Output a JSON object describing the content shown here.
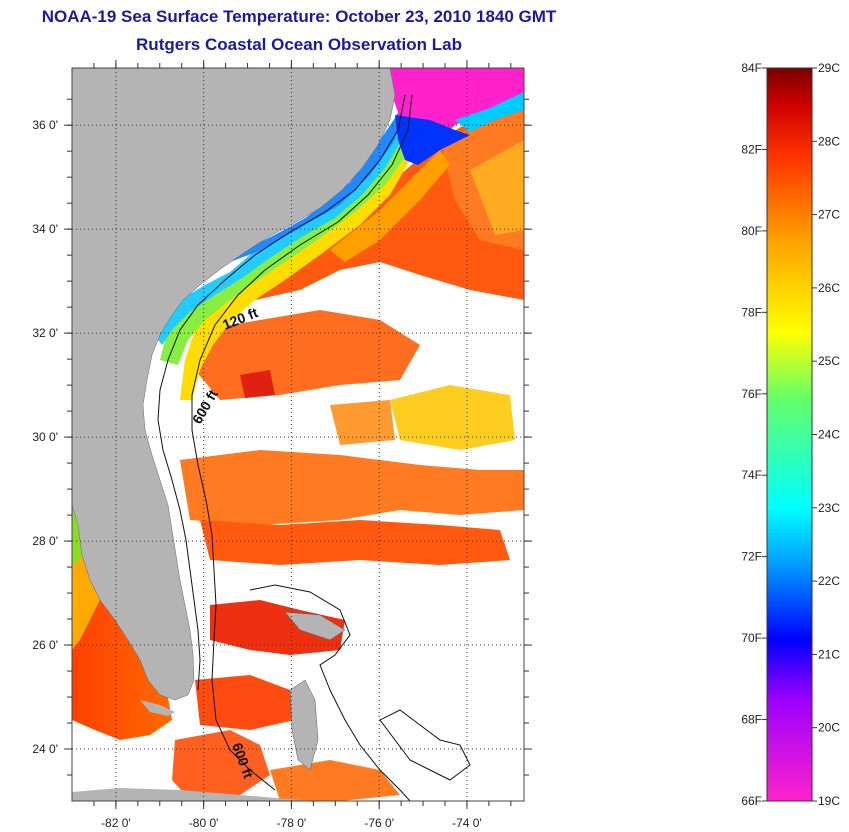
{
  "title": "NOAA-19 Sea Surface Temperature:  October 23, 2010 1840 GMT",
  "subtitle": "Rutgers Coastal Ocean Observation Lab",
  "map": {
    "lon_range": [
      -83,
      -72.7
    ],
    "lat_range": [
      23,
      37.1
    ],
    "lat_ticks": [
      {
        "value": 36,
        "label": "36 0'"
      },
      {
        "value": 34,
        "label": "34 0'"
      },
      {
        "value": 32,
        "label": "32 0'"
      },
      {
        "value": 30,
        "label": "30 0'"
      },
      {
        "value": 28,
        "label": "28 0'"
      },
      {
        "value": 26,
        "label": "26 0'"
      },
      {
        "value": 24,
        "label": "24 0'"
      }
    ],
    "lon_ticks": [
      {
        "value": -82,
        "label": "-82 0'"
      },
      {
        "value": -80,
        "label": "-80 0'"
      },
      {
        "value": -78,
        "label": "-78 0'"
      },
      {
        "value": -76,
        "label": "-76 0'"
      },
      {
        "value": -74,
        "label": "-74 0'"
      }
    ],
    "contour_labels": [
      "120 ft",
      "600 ft",
      "600 ft"
    ],
    "land_color": "#b4b4b4"
  },
  "colorbar": {
    "fahrenheit_labels": [
      "84F",
      "82F",
      "80F",
      "78F",
      "76F",
      "74F",
      "72F",
      "70F",
      "68F",
      "66F"
    ],
    "celsius_labels": [
      "29C",
      "28C",
      "27C",
      "26C",
      "25C",
      "24C",
      "23C",
      "22C",
      "21C",
      "20C",
      "19C"
    ],
    "colors": [
      "#ff22cc",
      "#9a00ff",
      "#0000ff",
      "#0099ff",
      "#00ffff",
      "#66ff66",
      "#ffff00",
      "#ffa500",
      "#ff3300",
      "#cc0000",
      "#7a0000"
    ]
  }
}
